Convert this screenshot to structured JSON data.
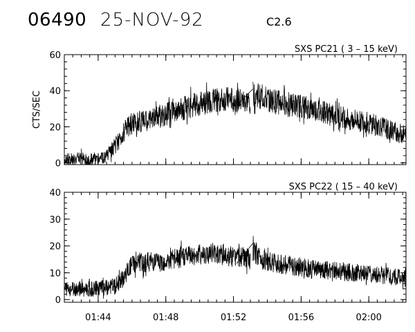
{
  "header": {
    "event_id": "06490",
    "date": "25-NOV-92",
    "flare_class": "C2.6"
  },
  "chart_data": [
    {
      "type": "line",
      "title": "SXS PC21  (  3 – 15 keV)",
      "ylabel": "CTS/SEC",
      "xlabel": "",
      "x_unit": "UT minutes after 01:42",
      "xlim": [
        0,
        20.2
      ],
      "ylim": [
        -1,
        60
      ],
      "yticks": [
        0,
        20,
        40,
        60
      ],
      "ytick_labels": [
        "0",
        "20",
        "40",
        "60"
      ],
      "xticks": [
        2,
        6,
        10,
        14,
        18
      ],
      "xtick_labels": [],
      "data_gap": [
        11.0,
        11.15
      ],
      "trend_x": [
        0,
        1,
        2,
        2.5,
        3,
        3.5,
        4,
        5,
        6,
        7,
        8,
        9,
        10,
        10.5,
        11,
        11.15,
        11.5,
        12,
        13,
        14,
        15,
        16,
        17,
        18,
        19,
        20.2
      ],
      "trend_y": [
        2,
        2,
        2,
        3,
        9,
        17,
        22,
        24,
        27,
        30,
        33,
        35,
        35,
        34,
        34,
        38,
        37,
        35,
        33,
        31,
        29,
        26,
        24,
        22,
        19,
        15
      ],
      "noise_amplitude": 5
    },
    {
      "type": "line",
      "title": "SXS PC22  ( 15 – 40 keV)",
      "ylabel": "",
      "xlabel": "",
      "x_unit": "UT minutes after 01:42",
      "xlim": [
        0,
        20.2
      ],
      "ylim": [
        -1,
        40
      ],
      "yticks": [
        0,
        10,
        20,
        30,
        40
      ],
      "ytick_labels": [
        "0",
        "10",
        "20",
        "30",
        "40"
      ],
      "xticks": [
        2,
        6,
        10,
        14,
        18
      ],
      "xtick_labels": [
        "01:44",
        "01:48",
        "01:52",
        "01:56",
        "02:00"
      ],
      "data_gap": [
        11.0,
        11.15
      ],
      "trend_x": [
        0,
        1,
        2,
        3,
        3.5,
        4,
        5,
        6,
        7,
        8,
        9,
        10,
        10.5,
        11,
        11.15,
        11.5,
        12,
        13,
        14,
        15,
        16,
        17,
        18,
        19,
        20.2
      ],
      "trend_y": [
        4,
        4,
        4,
        5,
        8,
        13,
        14,
        14,
        16,
        17,
        17,
        16,
        16,
        15,
        18,
        16,
        14,
        13,
        12,
        11,
        11,
        10,
        10,
        9,
        8
      ],
      "noise_amplitude": 3.5
    }
  ]
}
